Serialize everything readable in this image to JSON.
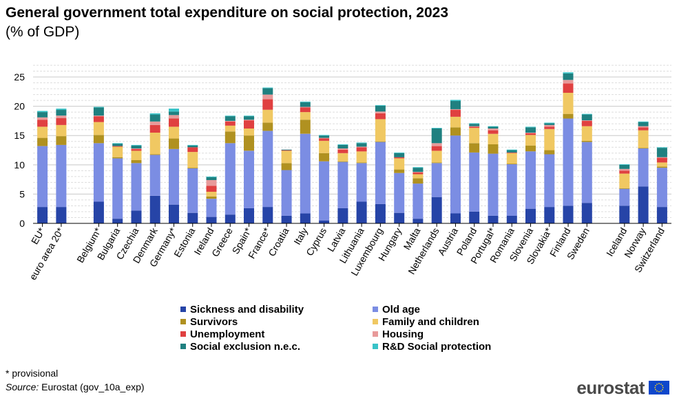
{
  "chart_data": {
    "type": "bar",
    "stacked": true,
    "title": "General government total expenditure on social protection, 2023",
    "subtitle": "(% of GDP)",
    "xlabel": "",
    "ylabel": "",
    "ylim": [
      0,
      27
    ],
    "yticks": [
      0,
      5,
      10,
      15,
      20,
      25
    ],
    "grid": true,
    "legend_position": "bottom",
    "categories": [
      "EU*",
      "euro area 20*",
      "",
      "Belgium*",
      "Bulgaria",
      "Czechia",
      "Denmark",
      "Germany*",
      "Estonia",
      "Ireland",
      "Greece",
      "Spain*",
      "France*",
      "Croatia",
      "Italy",
      "Cyprus",
      "Latvia",
      "Lithuania",
      "Luxembourg",
      "Hungary",
      "Malta",
      "Netherlands",
      "Austria",
      "Poland",
      "Portugal*",
      "Romania",
      "Slovenia",
      "Slovakia*",
      "Finland",
      "Sweden",
      "",
      "Iceland",
      "Norway",
      "Switzerland"
    ],
    "series": [
      {
        "name": "Sickness and disability",
        "color": "#2644a7",
        "values": [
          2.8,
          2.8,
          null,
          3.7,
          0.8,
          2.2,
          4.7,
          3.2,
          1.8,
          1.1,
          1.5,
          2.6,
          2.8,
          1.3,
          1.7,
          0.5,
          2.6,
          3.7,
          3.3,
          1.8,
          0.8,
          4.5,
          1.7,
          2.0,
          1.3,
          1.3,
          2.5,
          2.8,
          3.0,
          3.5,
          null,
          3.0,
          6.3,
          2.8
        ]
      },
      {
        "name": "Old age",
        "color": "#7b8de3",
        "values": [
          10.4,
          10.6,
          null,
          10.0,
          10.3,
          8.1,
          7.0,
          9.5,
          7.6,
          3.1,
          12.2,
          9.8,
          13.0,
          7.8,
          13.6,
          10.1,
          7.9,
          6.6,
          10.6,
          6.8,
          6.0,
          5.8,
          13.3,
          10.1,
          10.6,
          8.8,
          9.8,
          9.0,
          14.9,
          10.4,
          null,
          2.9,
          6.5,
          6.7
        ]
      },
      {
        "name": "Survivors",
        "color": "#b09120",
        "values": [
          1.4,
          1.5,
          null,
          1.4,
          0.2,
          0.5,
          0.1,
          1.8,
          0.1,
          0.4,
          2.0,
          2.6,
          1.4,
          1.2,
          2.4,
          1.4,
          0.1,
          0.1,
          0.1,
          0.6,
          0.9,
          0.1,
          1.4,
          1.6,
          1.6,
          0.1,
          1.0,
          0.7,
          0.8,
          0.2,
          null,
          0.1,
          0.1,
          0.2
        ]
      },
      {
        "name": "Family and children",
        "color": "#f0c862",
        "values": [
          1.9,
          1.9,
          null,
          2.2,
          1.8,
          1.6,
          3.7,
          2.0,
          2.7,
          0.8,
          1.0,
          1.2,
          2.2,
          2.1,
          1.3,
          2.1,
          1.4,
          1.9,
          3.8,
          1.9,
          0.7,
          2.0,
          1.8,
          2.6,
          1.8,
          1.8,
          1.8,
          3.6,
          3.6,
          2.5,
          null,
          2.5,
          3.0,
          0.7
        ]
      },
      {
        "name": "Unemployment",
        "color": "#e04040",
        "values": [
          1.2,
          1.2,
          null,
          1.0,
          0.1,
          0.3,
          1.3,
          1.4,
          0.8,
          1.0,
          0.7,
          1.4,
          1.8,
          0.1,
          0.8,
          0.4,
          0.6,
          0.7,
          1.0,
          0.2,
          0.3,
          0.8,
          1.2,
          0.2,
          0.6,
          0.1,
          0.3,
          0.4,
          1.6,
          0.9,
          null,
          0.5,
          0.5,
          0.8
        ]
      },
      {
        "name": "Housing",
        "color": "#e89a9a",
        "values": [
          0.4,
          0.4,
          null,
          0.1,
          0.0,
          0.1,
          0.6,
          0.6,
          0.0,
          1.0,
          0.1,
          0.1,
          0.8,
          0.0,
          0.1,
          0.1,
          0.2,
          0.1,
          0.3,
          0.0,
          0.1,
          0.5,
          0.1,
          0.1,
          0.3,
          0.0,
          0.1,
          0.3,
          0.6,
          0.1,
          null,
          0.3,
          0.2,
          0.1
        ]
      },
      {
        "name": "Social exclusion n.e.c.",
        "color": "#1f8080",
        "values": [
          0.9,
          1.0,
          null,
          1.4,
          0.4,
          0.5,
          1.2,
          0.6,
          0.3,
          0.5,
          0.8,
          0.6,
          1.1,
          0.1,
          0.8,
          0.4,
          0.6,
          0.6,
          1.0,
          0.7,
          0.7,
          2.5,
          1.4,
          0.4,
          0.3,
          0.4,
          0.9,
          0.3,
          1.1,
          1.0,
          null,
          0.7,
          0.7,
          1.6
        ]
      },
      {
        "name": "R&D Social protection",
        "color": "#38c3c8",
        "values": [
          0.2,
          0.2,
          null,
          0.1,
          0.1,
          0.1,
          0.2,
          0.5,
          0.1,
          0.1,
          0.1,
          0.1,
          0.1,
          0.0,
          0.1,
          0.1,
          0.1,
          0.1,
          0.1,
          0.1,
          0.1,
          0.1,
          0.2,
          0.1,
          0.1,
          0.1,
          0.1,
          0.1,
          0.2,
          0.1,
          null,
          0.1,
          0.1,
          0.1
        ]
      }
    ]
  },
  "legend": {
    "items": [
      "Sickness and disability",
      "Old age",
      "Survivors",
      "Family and children",
      "Unemployment",
      "Housing",
      "Social exclusion n.e.c.",
      "R&D Social protection"
    ],
    "colors": [
      "#2644a7",
      "#7b8de3",
      "#b09120",
      "#f0c862",
      "#e04040",
      "#e89a9a",
      "#1f8080",
      "#38c3c8"
    ]
  },
  "footnote": "* provisional",
  "source": {
    "label": "Source:",
    "text": " Eurostat (gov_10a_exp)"
  },
  "logo": {
    "text": "eurostat"
  }
}
